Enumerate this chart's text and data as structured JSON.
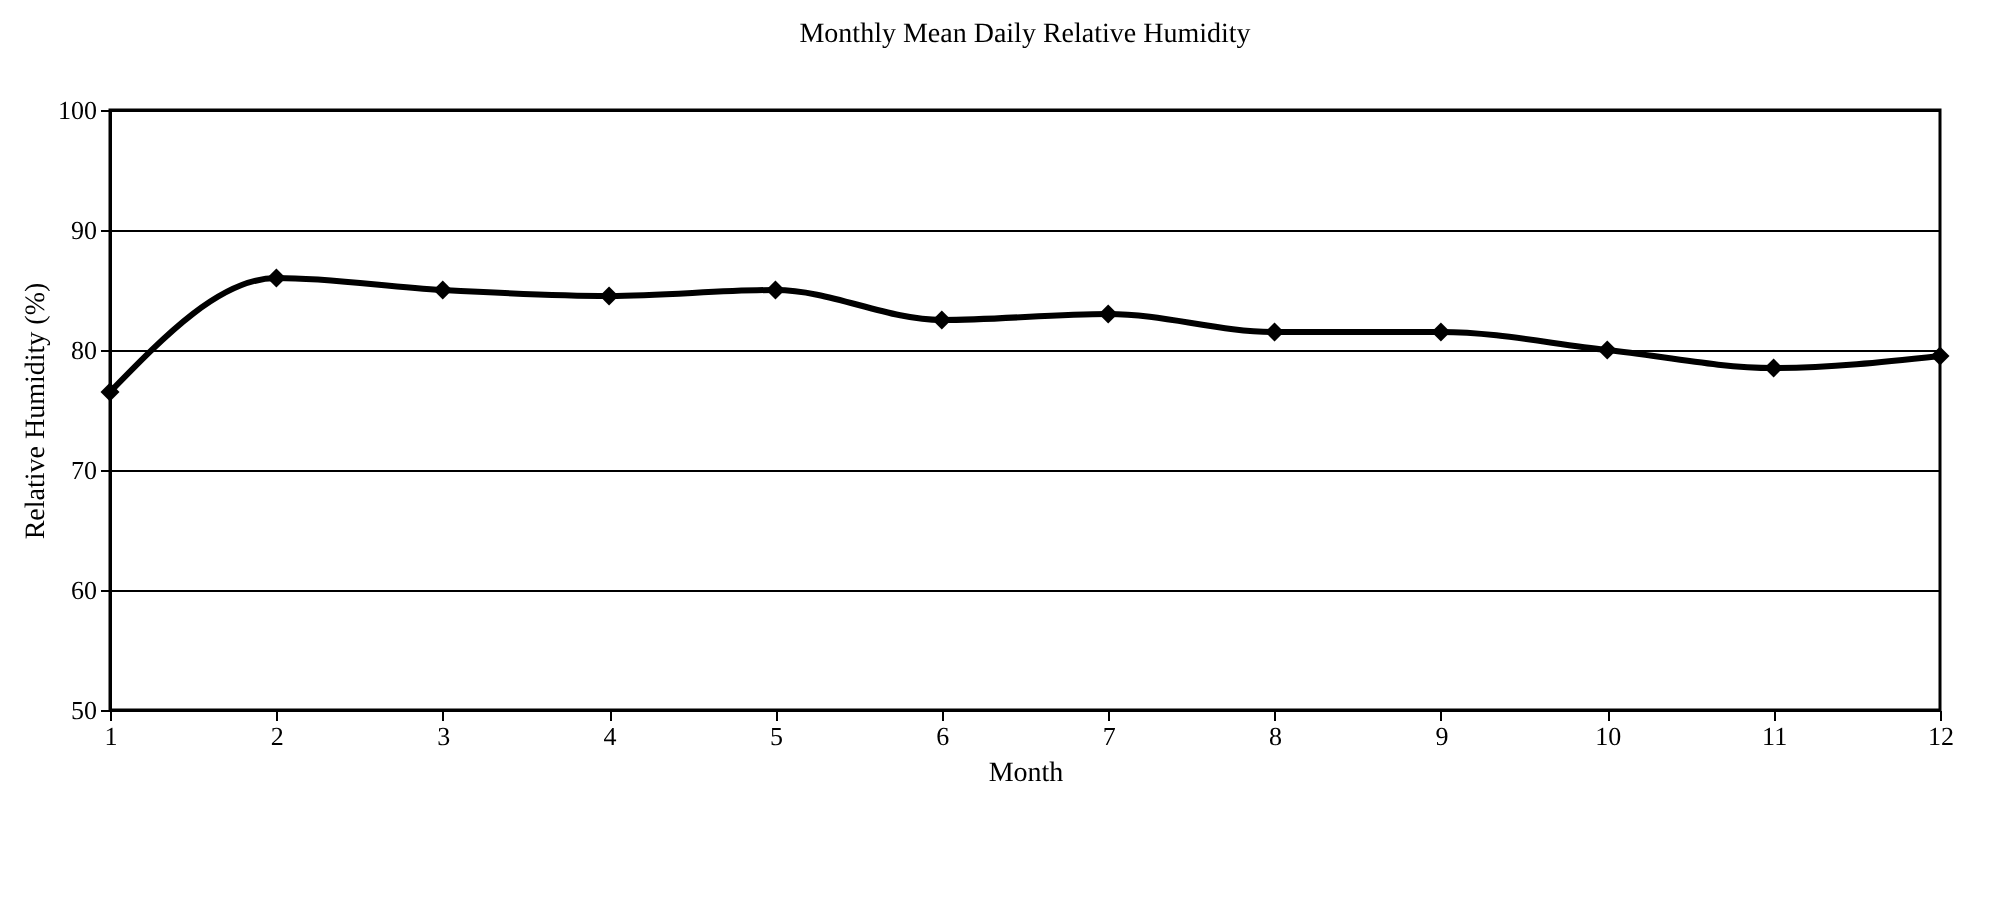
{
  "chart_data": {
    "type": "line",
    "title": "Monthly Mean Daily Relative Humidity",
    "xlabel": "Month",
    "ylabel": "Relative Humidity (%)",
    "x": [
      1,
      2,
      3,
      4,
      5,
      6,
      7,
      8,
      9,
      10,
      11,
      12
    ],
    "series": [
      {
        "color": "#000000",
        "values": [
          76.5,
          86,
          85,
          84.5,
          85,
          82.5,
          83,
          81.5,
          81.5,
          80,
          78.5,
          79.5
        ]
      }
    ],
    "xlim": [
      1,
      12
    ],
    "xticks": [
      1,
      2,
      3,
      4,
      5,
      6,
      7,
      8,
      9,
      10,
      11,
      12
    ],
    "ylim": [
      50,
      100
    ],
    "yticks": [
      50,
      60,
      70,
      80,
      90,
      100
    ],
    "grid": "y",
    "marker": "diamond",
    "line_style": "solid",
    "legend": false
  }
}
